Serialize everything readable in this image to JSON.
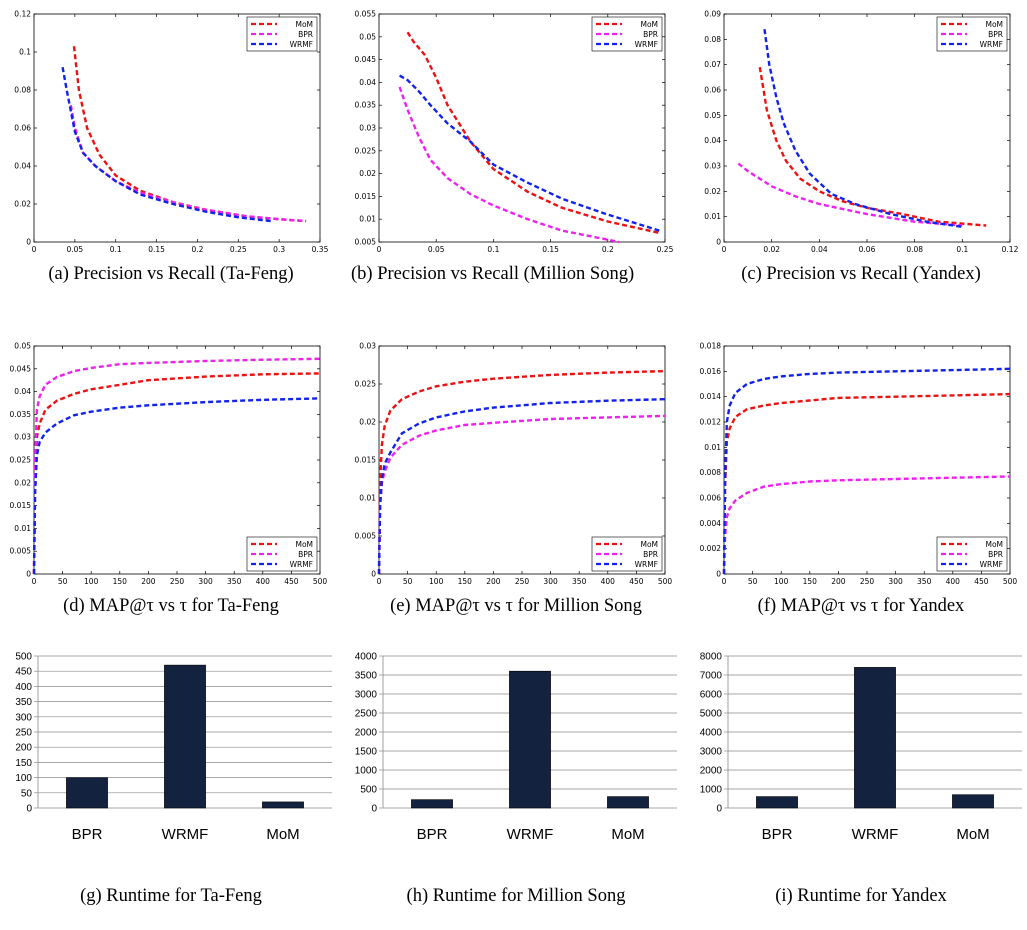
{
  "colors": {
    "MoM": "#ee1111",
    "BPR": "#ee22ee",
    "WRMF": "#1122ee",
    "bar": "#13223f"
  },
  "chart_data": [
    {
      "id": "a",
      "type": "line",
      "caption": "(a)  Precision vs Recall (Ta-Feng)",
      "xlim": [
        0,
        0.35
      ],
      "ylim": [
        0,
        0.12
      ],
      "xticks": [
        0,
        0.05,
        0.1,
        0.15,
        0.2,
        0.25,
        0.3,
        0.35
      ],
      "xtick_labels": [
        "0",
        "0.05",
        "0.1",
        "0.15",
        "0.2",
        "0.25",
        "0.3",
        "0.35"
      ],
      "yticks": [
        0,
        0.02,
        0.04,
        0.06,
        0.08,
        0.1,
        0.12
      ],
      "ytick_labels": [
        "0",
        "0.02",
        "0.04",
        "0.06",
        "0.08",
        "0.1",
        "0.12"
      ],
      "legend": "top-right",
      "series": [
        {
          "name": "MoM",
          "x": [
            0.049,
            0.055,
            0.065,
            0.08,
            0.1,
            0.13,
            0.17,
            0.21,
            0.26,
            0.3,
            0.333
          ],
          "y": [
            0.103,
            0.08,
            0.06,
            0.046,
            0.035,
            0.027,
            0.021,
            0.017,
            0.0135,
            0.012,
            0.011
          ]
        },
        {
          "name": "BPR",
          "x": [
            0.045,
            0.05,
            0.06,
            0.075,
            0.1,
            0.13,
            0.17,
            0.21,
            0.26,
            0.3,
            0.333
          ],
          "y": [
            0.072,
            0.06,
            0.047,
            0.04,
            0.032,
            0.026,
            0.021,
            0.017,
            0.0135,
            0.012,
            0.011
          ]
        },
        {
          "name": "WRMF",
          "x": [
            0.035,
            0.04,
            0.05,
            0.06,
            0.075,
            0.1,
            0.13,
            0.17,
            0.21,
            0.25,
            0.29
          ],
          "y": [
            0.092,
            0.08,
            0.058,
            0.047,
            0.04,
            0.032,
            0.025,
            0.02,
            0.016,
            0.013,
            0.011
          ]
        }
      ]
    },
    {
      "id": "b",
      "type": "line",
      "caption": "(b)  Precision vs Recall (Million Song)",
      "xlim": [
        0,
        0.25
      ],
      "ylim": [
        0.005,
        0.055
      ],
      "xticks": [
        0,
        0.05,
        0.1,
        0.15,
        0.2,
        0.25
      ],
      "xtick_labels": [
        "0",
        "0.05",
        "0.1",
        "0.15",
        "0.2",
        "0.25"
      ],
      "yticks": [
        0.005,
        0.01,
        0.015,
        0.02,
        0.025,
        0.03,
        0.035,
        0.04,
        0.045,
        0.05,
        0.055
      ],
      "ytick_labels": [
        "0.005",
        "0.01",
        "0.015",
        "0.02",
        "0.025",
        "0.03",
        "0.035",
        "0.04",
        "0.045",
        "0.05",
        "0.055"
      ],
      "legend": "top-right",
      "series": [
        {
          "name": "MoM",
          "x": [
            0.025,
            0.03,
            0.04,
            0.05,
            0.06,
            0.08,
            0.1,
            0.13,
            0.16,
            0.2,
            0.245
          ],
          "y": [
            0.051,
            0.049,
            0.046,
            0.041,
            0.035,
            0.027,
            0.021,
            0.016,
            0.0125,
            0.0095,
            0.007
          ]
        },
        {
          "name": "BPR",
          "x": [
            0.018,
            0.025,
            0.035,
            0.045,
            0.06,
            0.08,
            0.1,
            0.13,
            0.16,
            0.19,
            0.21
          ],
          "y": [
            0.039,
            0.034,
            0.028,
            0.023,
            0.019,
            0.0155,
            0.013,
            0.01,
            0.0075,
            0.006,
            0.005
          ]
        },
        {
          "name": "WRMF",
          "x": [
            0.018,
            0.025,
            0.035,
            0.045,
            0.06,
            0.08,
            0.1,
            0.13,
            0.16,
            0.2,
            0.245
          ],
          "y": [
            0.0415,
            0.0405,
            0.038,
            0.035,
            0.031,
            0.027,
            0.022,
            0.018,
            0.0145,
            0.011,
            0.0075
          ]
        }
      ]
    },
    {
      "id": "c",
      "type": "line",
      "caption": "(c)  Precision vs Recall (Yandex)",
      "xlim": [
        0,
        0.12
      ],
      "ylim": [
        0,
        0.09
      ],
      "xticks": [
        0,
        0.02,
        0.04,
        0.06,
        0.08,
        0.1,
        0.12
      ],
      "xtick_labels": [
        "0",
        "0.02",
        "0.04",
        "0.06",
        "0.08",
        "0.1",
        "0.12"
      ],
      "yticks": [
        0,
        0.01,
        0.02,
        0.03,
        0.04,
        0.05,
        0.06,
        0.07,
        0.08,
        0.09
      ],
      "ytick_labels": [
        "0",
        "0.01",
        "0.02",
        "0.03",
        "0.04",
        "0.05",
        "0.06",
        "0.07",
        "0.08",
        "0.09"
      ],
      "legend": "top-right",
      "series": [
        {
          "name": "MoM",
          "x": [
            0.015,
            0.018,
            0.022,
            0.026,
            0.032,
            0.04,
            0.05,
            0.06,
            0.075,
            0.09,
            0.11
          ],
          "y": [
            0.069,
            0.052,
            0.04,
            0.032,
            0.025,
            0.02,
            0.016,
            0.0135,
            0.011,
            0.008,
            0.0065
          ]
        },
        {
          "name": "BPR",
          "x": [
            0.006,
            0.01,
            0.015,
            0.02,
            0.03,
            0.04,
            0.05,
            0.06,
            0.07,
            0.08,
            0.1
          ],
          "y": [
            0.031,
            0.028,
            0.025,
            0.022,
            0.018,
            0.015,
            0.013,
            0.011,
            0.0095,
            0.008,
            0.0065
          ]
        },
        {
          "name": "WRMF",
          "x": [
            0.017,
            0.019,
            0.022,
            0.025,
            0.03,
            0.036,
            0.045,
            0.055,
            0.07,
            0.085,
            0.1
          ],
          "y": [
            0.084,
            0.07,
            0.057,
            0.047,
            0.036,
            0.027,
            0.019,
            0.015,
            0.011,
            0.008,
            0.006
          ]
        }
      ]
    },
    {
      "id": "d",
      "type": "line",
      "caption": "(d)  MAP@τ vs τ for Ta-Feng",
      "xlim": [
        0,
        500
      ],
      "ylim": [
        0,
        0.05
      ],
      "xticks": [
        0,
        50,
        100,
        150,
        200,
        250,
        300,
        350,
        400,
        450,
        500
      ],
      "xtick_labels": [
        "0",
        "50",
        "100",
        "150",
        "200",
        "250",
        "300",
        "350",
        "400",
        "450",
        "500"
      ],
      "yticks": [
        0,
        0.005,
        0.01,
        0.015,
        0.02,
        0.025,
        0.03,
        0.035,
        0.04,
        0.045,
        0.05
      ],
      "ytick_labels": [
        "0",
        "0.005",
        "0.01",
        "0.015",
        "0.02",
        "0.025",
        "0.03",
        "0.035",
        "0.04",
        "0.045",
        "0.05"
      ],
      "legend": "bottom-right",
      "series": [
        {
          "name": "MoM",
          "x": [
            0,
            2,
            5,
            10,
            20,
            40,
            70,
            100,
            150,
            200,
            300,
            400,
            500
          ],
          "y": [
            0,
            0.02,
            0.03,
            0.033,
            0.036,
            0.038,
            0.0395,
            0.0405,
            0.0415,
            0.0425,
            0.0433,
            0.0438,
            0.044
          ]
        },
        {
          "name": "BPR",
          "x": [
            0,
            2,
            5,
            10,
            20,
            40,
            70,
            100,
            150,
            200,
            300,
            400,
            500
          ],
          "y": [
            0,
            0.025,
            0.036,
            0.039,
            0.0415,
            0.0432,
            0.0445,
            0.0452,
            0.046,
            0.0463,
            0.0467,
            0.047,
            0.0472
          ]
        },
        {
          "name": "WRMF",
          "x": [
            0,
            2,
            5,
            10,
            20,
            40,
            70,
            100,
            150,
            200,
            300,
            400,
            500
          ],
          "y": [
            0,
            0.018,
            0.026,
            0.029,
            0.031,
            0.033,
            0.0348,
            0.0356,
            0.0365,
            0.037,
            0.0377,
            0.0382,
            0.0385
          ]
        }
      ]
    },
    {
      "id": "e",
      "type": "line",
      "caption": "(e)  MAP@τ vs τ for Million Song",
      "xlim": [
        0,
        500
      ],
      "ylim": [
        0,
        0.03
      ],
      "xticks": [
        0,
        50,
        100,
        150,
        200,
        250,
        300,
        350,
        400,
        450,
        500
      ],
      "xtick_labels": [
        "0",
        "50",
        "100",
        "150",
        "200",
        "250",
        "300",
        "350",
        "400",
        "450",
        "500"
      ],
      "yticks": [
        0,
        0.005,
        0.01,
        0.015,
        0.02,
        0.025,
        0.03
      ],
      "ytick_labels": [
        "0",
        "0.005",
        "0.01",
        "0.015",
        "0.02",
        "0.025",
        "0.03"
      ],
      "legend": "bottom-right",
      "series": [
        {
          "name": "MoM",
          "x": [
            0,
            2,
            5,
            10,
            20,
            40,
            70,
            100,
            150,
            200,
            300,
            400,
            500
          ],
          "y": [
            0,
            0.012,
            0.017,
            0.0195,
            0.0215,
            0.023,
            0.024,
            0.0247,
            0.0253,
            0.0257,
            0.0262,
            0.0265,
            0.0267
          ]
        },
        {
          "name": "BPR",
          "x": [
            0,
            2,
            5,
            10,
            20,
            40,
            70,
            100,
            150,
            200,
            300,
            400,
            500
          ],
          "y": [
            0,
            0.009,
            0.012,
            0.0135,
            0.0153,
            0.017,
            0.0182,
            0.0189,
            0.0196,
            0.0199,
            0.0204,
            0.0206,
            0.0208
          ]
        },
        {
          "name": "WRMF",
          "x": [
            0,
            2,
            5,
            10,
            20,
            40,
            70,
            100,
            150,
            200,
            300,
            400,
            500
          ],
          "y": [
            0,
            0.009,
            0.0125,
            0.0145,
            0.016,
            0.0185,
            0.0198,
            0.0206,
            0.0214,
            0.0219,
            0.0225,
            0.0228,
            0.023
          ]
        }
      ]
    },
    {
      "id": "f",
      "type": "line",
      "caption": "(f)  MAP@τ vs τ for Yandex",
      "xlim": [
        0,
        500
      ],
      "ylim": [
        0,
        0.018
      ],
      "xticks": [
        0,
        50,
        100,
        150,
        200,
        250,
        300,
        350,
        400,
        450,
        500
      ],
      "xtick_labels": [
        "0",
        "50",
        "100",
        "150",
        "200",
        "250",
        "300",
        "350",
        "400",
        "450",
        "500"
      ],
      "yticks": [
        0,
        0.002,
        0.004,
        0.006,
        0.008,
        0.01,
        0.012,
        0.014,
        0.016,
        0.018
      ],
      "ytick_labels": [
        "0",
        "0.002",
        "0.004",
        "0.006",
        "0.008",
        "0.01",
        "0.012",
        "0.014",
        "0.016",
        "0.018"
      ],
      "legend": "bottom-right",
      "series": [
        {
          "name": "MoM",
          "x": [
            0,
            2,
            5,
            10,
            20,
            40,
            70,
            100,
            150,
            200,
            300,
            400,
            500
          ],
          "y": [
            0,
            0.007,
            0.0105,
            0.0115,
            0.0124,
            0.013,
            0.0133,
            0.0135,
            0.0137,
            0.0139,
            0.014,
            0.0141,
            0.0142
          ]
        },
        {
          "name": "BPR",
          "x": [
            0,
            2,
            5,
            10,
            20,
            40,
            70,
            100,
            150,
            200,
            300,
            400,
            500
          ],
          "y": [
            0,
            0.003,
            0.0045,
            0.0052,
            0.0058,
            0.0064,
            0.0069,
            0.0071,
            0.0073,
            0.0074,
            0.0075,
            0.0076,
            0.0077
          ]
        },
        {
          "name": "WRMF",
          "x": [
            0,
            2,
            5,
            10,
            20,
            40,
            70,
            100,
            150,
            200,
            300,
            400,
            500
          ],
          "y": [
            0,
            0.008,
            0.012,
            0.0133,
            0.0143,
            0.015,
            0.0154,
            0.0156,
            0.0158,
            0.0159,
            0.016,
            0.0161,
            0.0162
          ]
        }
      ]
    },
    {
      "id": "g",
      "type": "bar",
      "caption": "(g)  Runtime for Ta-Feng",
      "ylim": [
        0,
        500
      ],
      "yticks": [
        0,
        50,
        100,
        150,
        200,
        250,
        300,
        350,
        400,
        450,
        500
      ],
      "ytick_labels": [
        "0",
        "50",
        "100",
        "150",
        "200",
        "250",
        "300",
        "350",
        "400",
        "450",
        "500"
      ],
      "categories": [
        "BPR",
        "WRMF",
        "MoM"
      ],
      "values": [
        100,
        470,
        20
      ]
    },
    {
      "id": "h",
      "type": "bar",
      "caption": "(h)  Runtime for Million Song",
      "ylim": [
        0,
        4000
      ],
      "yticks": [
        0,
        500,
        1000,
        1500,
        2000,
        2500,
        3000,
        3500,
        4000
      ],
      "ytick_labels": [
        "0",
        "500",
        "1000",
        "1500",
        "2000",
        "2500",
        "3000",
        "3500",
        "4000"
      ],
      "categories": [
        "BPR",
        "WRMF",
        "MoM"
      ],
      "values": [
        220,
        3600,
        300
      ]
    },
    {
      "id": "i",
      "type": "bar",
      "caption": "(i)  Runtime for Yandex",
      "ylim": [
        0,
        8000
      ],
      "yticks": [
        0,
        1000,
        2000,
        3000,
        4000,
        5000,
        6000,
        7000,
        8000
      ],
      "ytick_labels": [
        "0",
        "1000",
        "2000",
        "3000",
        "4000",
        "5000",
        "6000",
        "7000",
        "8000"
      ],
      "categories": [
        "BPR",
        "WRMF",
        "MoM"
      ],
      "values": [
        600,
        7400,
        700
      ]
    }
  ]
}
